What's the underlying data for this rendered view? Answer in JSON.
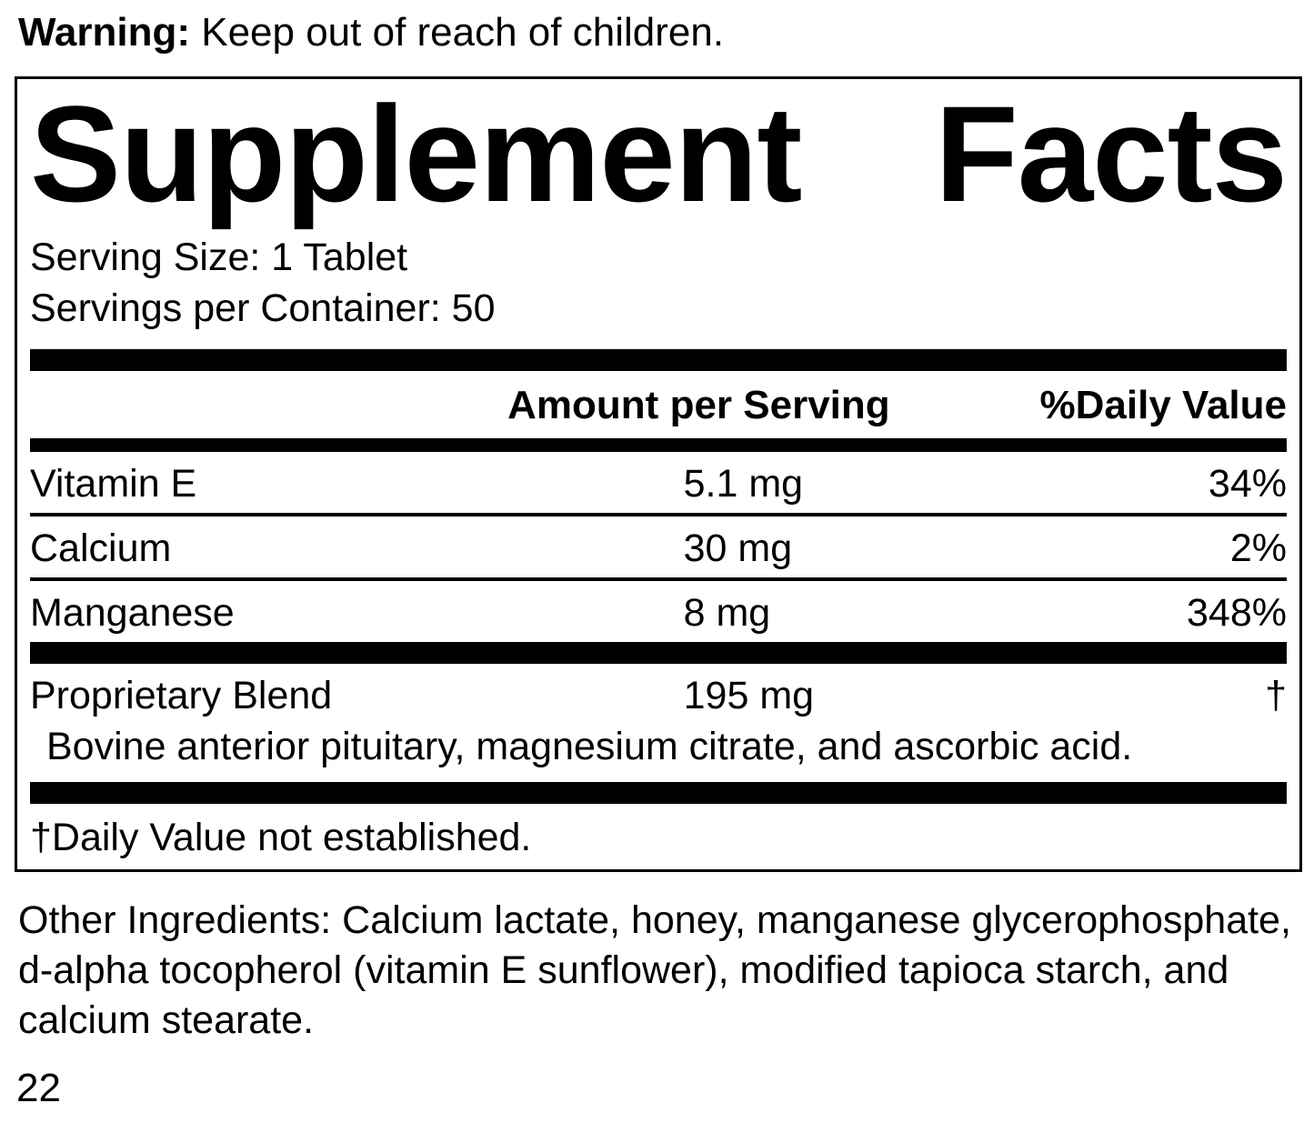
{
  "warning": {
    "label": "Warning:",
    "text": " Keep out of reach of children."
  },
  "panel": {
    "title": {
      "word1": "Supplement",
      "word2": "Facts"
    },
    "serving_size": "Serving Size: 1 Tablet",
    "servings_per_container": "Servings per Container: 50",
    "header": {
      "amount": "Amount per Serving",
      "daily_value": "%Daily Value"
    },
    "rows": [
      {
        "name": "Vitamin E",
        "amount": "5.1 mg",
        "dv": "34%"
      },
      {
        "name": "Calcium",
        "amount": "30 mg",
        "dv": "2%"
      },
      {
        "name": "Manganese",
        "amount": "8 mg",
        "dv": "348%"
      }
    ],
    "blend": {
      "name": "Proprietary Blend",
      "amount": "195 mg",
      "dv": "†",
      "description": "Bovine anterior pituitary, magnesium citrate, and ascorbic acid."
    },
    "footnote": "†Daily Value not established."
  },
  "other_ingredients": "Other Ingredients: Calcium lactate, honey, manganese glycerophosphate, d-alpha tocopherol (vitamin E sunflower), modified tapioca starch, and calcium stearate.",
  "page_number": "22",
  "colors": {
    "ink": "#000000",
    "background": "#ffffff"
  }
}
